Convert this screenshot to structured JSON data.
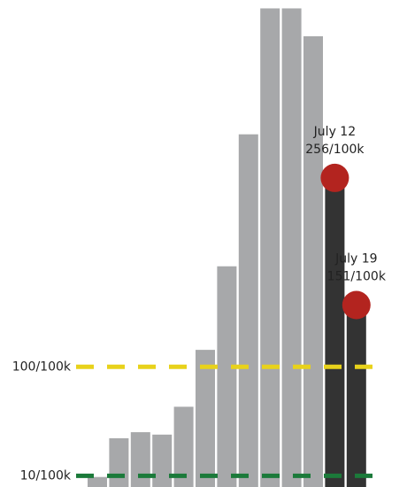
{
  "chart_data": {
    "type": "bar",
    "categories": [
      null,
      null,
      null,
      null,
      null,
      null,
      null,
      null,
      null,
      null,
      null,
      "July 12",
      "July 19"
    ],
    "values": [
      9,
      41,
      46,
      44,
      67,
      114,
      183,
      292,
      396,
      396,
      373,
      256,
      151
    ],
    "value_labels": [
      null,
      null,
      null,
      null,
      null,
      null,
      null,
      null,
      null,
      null,
      null,
      "256/100k",
      "151/100k"
    ],
    "colors": [
      "#a7a8aa",
      "#a7a8aa",
      "#a7a8aa",
      "#a7a8aa",
      "#a7a8aa",
      "#a7a8aa",
      "#a7a8aa",
      "#a7a8aa",
      "#a7a8aa",
      "#a7a8aa",
      "#a7a8aa",
      "#333333",
      "#333333"
    ],
    "marker_color": "#b3241f",
    "ylim": [
      0,
      400
    ],
    "reference_lines": [
      {
        "value": 100,
        "label": "100/100k",
        "color": "#e8d21b"
      },
      {
        "value": 10,
        "label": "10/100k",
        "color": "#1b7a3a"
      }
    ]
  }
}
